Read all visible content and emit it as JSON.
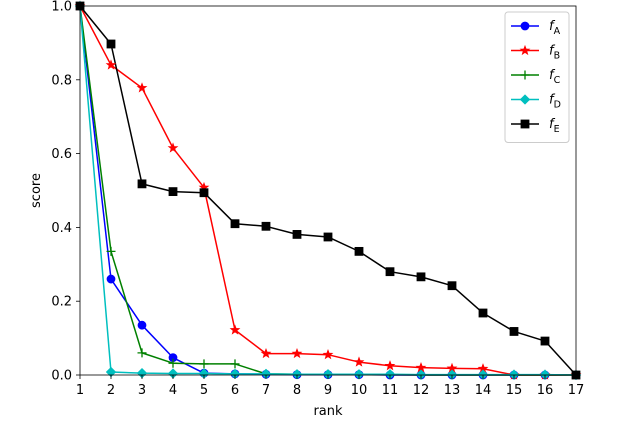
{
  "chart_data": {
    "type": "line",
    "title": "",
    "xlabel": "rank",
    "ylabel": "score",
    "xlim": [
      1,
      17
    ],
    "ylim": [
      0.0,
      1.0
    ],
    "xticks": [
      1,
      2,
      3,
      4,
      5,
      6,
      7,
      8,
      9,
      10,
      11,
      12,
      13,
      14,
      15,
      16,
      17
    ],
    "yticks": [
      0.0,
      0.2,
      0.4,
      0.6,
      0.8,
      1.0
    ],
    "ytick_labels": [
      "0.0",
      "0.2",
      "0.4",
      "0.6",
      "0.8",
      "1.0"
    ],
    "grid": false,
    "legend_position": "top-right",
    "series": [
      {
        "name": "f_A",
        "legend_base": "f",
        "legend_sub": "A",
        "color": "#0000ff",
        "marker": "circle",
        "x": [
          1,
          2,
          3,
          4,
          5,
          6,
          7,
          8,
          9,
          10,
          11,
          12,
          13,
          14,
          15,
          16,
          17
        ],
        "values": [
          1.0,
          0.26,
          0.135,
          0.047,
          0.005,
          0.003,
          0.002,
          0.001,
          0.001,
          0.001,
          0.0,
          0.0,
          0.0,
          0.0,
          0.0,
          0.0,
          0.0
        ]
      },
      {
        "name": "f_B",
        "legend_base": "f",
        "legend_sub": "B",
        "color": "#ff0000",
        "marker": "star",
        "x": [
          1,
          2,
          3,
          4,
          5,
          6,
          7,
          8,
          9,
          10,
          11,
          12,
          13,
          14,
          15,
          16,
          17
        ],
        "values": [
          1.0,
          0.84,
          0.778,
          0.615,
          0.508,
          0.122,
          0.058,
          0.058,
          0.055,
          0.035,
          0.025,
          0.02,
          0.018,
          0.017,
          0.0,
          0.0,
          0.0
        ]
      },
      {
        "name": "f_C",
        "legend_base": "f",
        "legend_sub": "C",
        "color": "#008000",
        "marker": "plus",
        "x": [
          1,
          2,
          3,
          4,
          5,
          6,
          7,
          8,
          9,
          10,
          11,
          12,
          13,
          14,
          15,
          16,
          17
        ],
        "values": [
          1.0,
          0.335,
          0.06,
          0.032,
          0.03,
          0.03,
          0.003,
          0.002,
          0.002,
          0.001,
          0.001,
          0.0,
          0.0,
          0.0,
          0.0,
          0.0,
          0.0
        ]
      },
      {
        "name": "f_D",
        "legend_base": "f",
        "legend_sub": "D",
        "color": "#00bfbf",
        "marker": "diamond",
        "x": [
          1,
          2,
          3,
          4,
          5,
          6,
          7,
          8,
          9,
          10,
          11,
          12,
          13,
          14,
          15,
          16,
          17
        ],
        "values": [
          1.0,
          0.008,
          0.005,
          0.004,
          0.004,
          0.003,
          0.003,
          0.002,
          0.002,
          0.002,
          0.002,
          0.001,
          0.001,
          0.001,
          0.001,
          0.001,
          0.0
        ]
      },
      {
        "name": "f_E",
        "legend_base": "f",
        "legend_sub": "E",
        "color": "#000000",
        "marker": "square",
        "x": [
          1,
          2,
          3,
          4,
          5,
          6,
          7,
          8,
          9,
          10,
          11,
          12,
          13,
          14,
          15,
          16,
          17
        ],
        "values": [
          1.0,
          0.897,
          0.518,
          0.497,
          0.494,
          0.41,
          0.403,
          0.381,
          0.374,
          0.335,
          0.28,
          0.266,
          0.242,
          0.168,
          0.118,
          0.092,
          0.0
        ]
      }
    ]
  }
}
